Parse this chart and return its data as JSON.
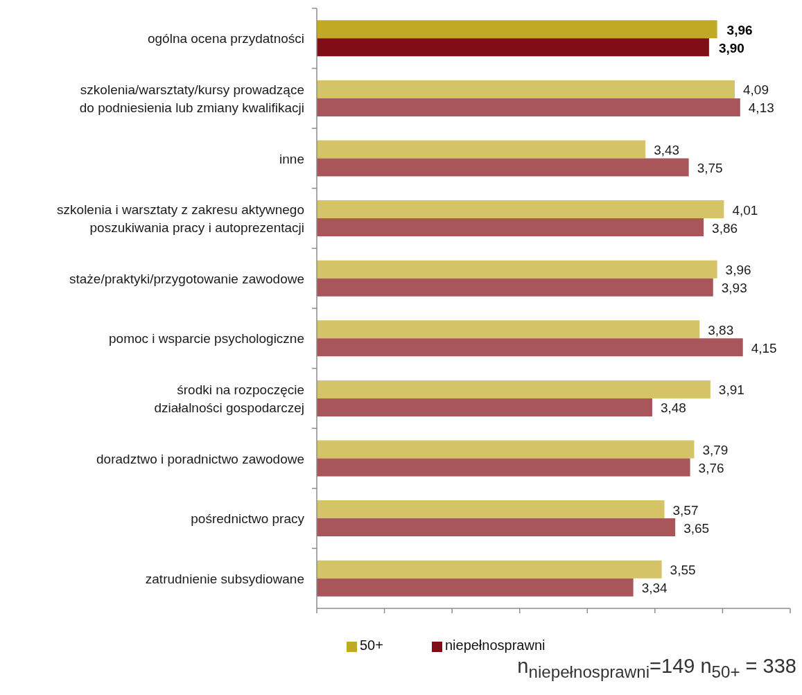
{
  "chart_data": {
    "type": "bar",
    "orientation": "horizontal",
    "categories": [
      "ogólna ocena przydatności",
      "szkolenia/warsztaty/kursy prowadzące\ndo podniesienia lub zmiany kwalifikacji",
      "inne",
      "szkolenia i warsztaty z zakresu aktywnego\nposzukiwania pracy i autoprezentacji",
      "staże/praktyki/przygotowanie zawodowe",
      "pomoc i wsparcie psychologiczne",
      "środki na rozpoczęcie\ndziałalności gospodarczej",
      "doradztwo i poradnictwo zawodowe",
      "pośrednictwo pracy",
      "zatrudnienie subsydiowane"
    ],
    "series": [
      {
        "name": "50+",
        "color": "#bfa925",
        "colors": [
          "#bfa925",
          "#d4c467",
          "#d4c467",
          "#d4c467",
          "#d4c467",
          "#d4c467",
          "#d4c467",
          "#d4c467",
          "#d4c467",
          "#d4c467"
        ],
        "values": [
          3.96,
          4.09,
          3.43,
          4.01,
          3.96,
          3.83,
          3.91,
          3.79,
          3.57,
          3.55
        ],
        "value_labels": [
          "3,96",
          "4,09",
          "3,43",
          "4,01",
          "3,96",
          "3,83",
          "3,91",
          "3,79",
          "3,57",
          "3,55"
        ]
      },
      {
        "name": "niepełnosprawni",
        "color": "#800d15",
        "colors": [
          "#800d15",
          "#a8565a",
          "#a8565a",
          "#a8565a",
          "#a8565a",
          "#a8565a",
          "#a8565a",
          "#a8565a",
          "#a8565a",
          "#a8565a"
        ],
        "values": [
          3.9,
          4.13,
          3.75,
          3.86,
          3.93,
          4.15,
          3.48,
          3.76,
          3.65,
          3.34
        ],
        "value_labels": [
          "3,90",
          "4,13",
          "3,75",
          "3,86",
          "3,93",
          "4,15",
          "3,48",
          "3,76",
          "3,65",
          "3,34"
        ]
      }
    ],
    "xlim": [
      1,
      4.5
    ],
    "xticks": [
      {
        "value": 1,
        "label": null
      },
      {
        "value": 1.5,
        "label": null
      },
      {
        "value": 2,
        "label": null
      },
      {
        "value": 2.5,
        "label": null
      },
      {
        "value": 3,
        "label": null
      },
      {
        "value": 3.5,
        "label": null
      },
      {
        "value": 4,
        "label": null
      },
      {
        "value": 4.5,
        "label": null
      }
    ],
    "tick_labels": "y",
    "legend": "bottom",
    "annotations": [
      "n$_{niepełnosprawni}$=149 n$_{50+}$ = 338"
    ]
  }
}
